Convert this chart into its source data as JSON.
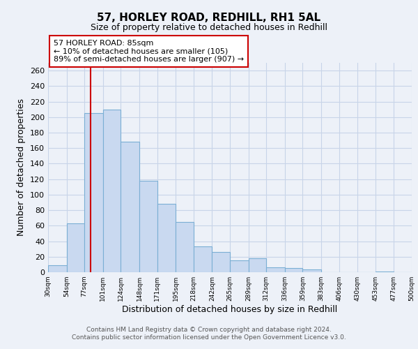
{
  "title": "57, HORLEY ROAD, REDHILL, RH1 5AL",
  "subtitle": "Size of property relative to detached houses in Redhill",
  "xlabel": "Distribution of detached houses by size in Redhill",
  "ylabel": "Number of detached properties",
  "bin_edges": [
    30,
    54,
    77,
    101,
    124,
    148,
    171,
    195,
    218,
    242,
    265,
    289,
    312,
    336,
    359,
    383,
    406,
    430,
    453,
    477,
    500
  ],
  "bar_heights": [
    9,
    63,
    205,
    210,
    168,
    118,
    88,
    65,
    33,
    26,
    15,
    18,
    6,
    5,
    4,
    0,
    0,
    0,
    1,
    0
  ],
  "bar_color": "#c9d9f0",
  "bar_edge_color": "#7bafd4",
  "grid_color": "#c8d4e8",
  "background_color": "#edf1f8",
  "plot_bg_color": "#edf1f8",
  "vline_x": 85,
  "vline_color": "#cc0000",
  "annotation_title": "57 HORLEY ROAD: 85sqm",
  "annotation_line1": "← 10% of detached houses are smaller (105)",
  "annotation_line2": "89% of semi-detached houses are larger (907) →",
  "annotation_box_color": "#ffffff",
  "annotation_box_edge_color": "#cc0000",
  "ylim": [
    0,
    270
  ],
  "tick_labels": [
    "30sqm",
    "54sqm",
    "77sqm",
    "101sqm",
    "124sqm",
    "148sqm",
    "171sqm",
    "195sqm",
    "218sqm",
    "242sqm",
    "265sqm",
    "289sqm",
    "312sqm",
    "336sqm",
    "359sqm",
    "383sqm",
    "406sqm",
    "430sqm",
    "453sqm",
    "477sqm",
    "500sqm"
  ],
  "footer1": "Contains HM Land Registry data © Crown copyright and database right 2024.",
  "footer2": "Contains public sector information licensed under the Open Government Licence v3.0."
}
